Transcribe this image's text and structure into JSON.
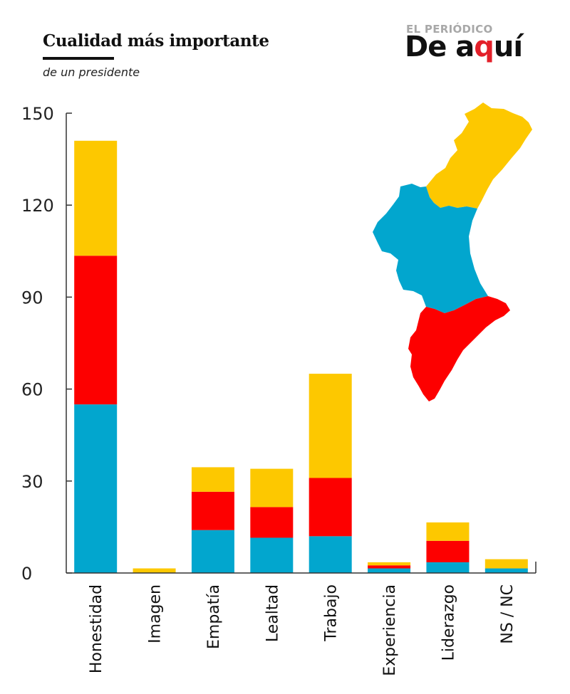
{
  "title": "Cualidad más importante",
  "subtitle": "de un presidente",
  "logo": {
    "top": "EL PERIÓDICO",
    "main_left": "De a",
    "main_red": "q",
    "main_right": "uí"
  },
  "colors": {
    "castellon": "#fdc800",
    "valencia": "#02a6ce",
    "alicante": "#fd0000",
    "axis": "#333333"
  },
  "chart_data": {
    "type": "bar",
    "stacked": true,
    "categories": [
      "Honestidad",
      "Imagen",
      "Empatía",
      "Lealtad",
      "Trabajo",
      "Experiencia",
      "Liderazgo",
      "NS / NC"
    ],
    "series": [
      {
        "color": "#02a6ce",
        "values": [
          55,
          0,
          14,
          11.5,
          12,
          1.5,
          3.5,
          1.5
        ]
      },
      {
        "color": "#fd0000",
        "values": [
          48.5,
          0,
          12.5,
          10,
          19,
          1,
          7,
          0
        ]
      },
      {
        "color": "#fdc800",
        "values": [
          37.5,
          1.5,
          8,
          12.5,
          34,
          1,
          6,
          3
        ]
      }
    ],
    "yticks": [
      0,
      30,
      60,
      90,
      120,
      150
    ],
    "ylim": [
      0,
      150
    ],
    "legend": "map of provinces, top-right",
    "xlabel": "",
    "ylabel": ""
  }
}
